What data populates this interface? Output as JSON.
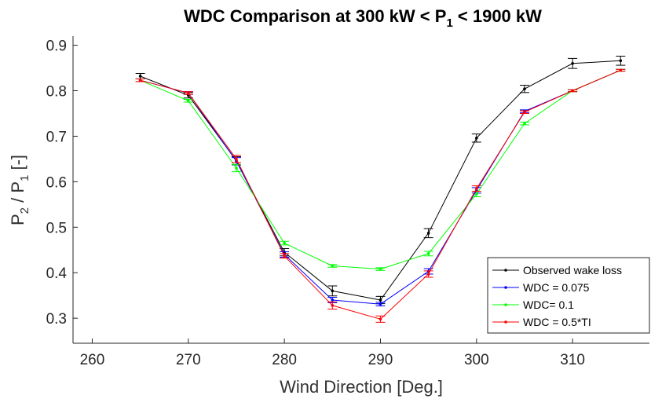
{
  "chart_data": {
    "type": "line",
    "title": {
      "main": "WDC Comparison at 300 kW < P",
      "sub": "1",
      "tail": " < 1900 kW"
    },
    "xlabel": "Wind Direction [Deg.]",
    "ylabel": {
      "a": "P",
      "a_sub": "2",
      "mid": " / P",
      "b_sub": "1",
      "tail": " [-]"
    },
    "xlim": [
      258,
      318
    ],
    "ylim": [
      0.245,
      0.92
    ],
    "xticks": [
      "260",
      "270",
      "280",
      "290",
      "300",
      "310"
    ],
    "yticks": [
      "0.3",
      "0.4",
      "0.5",
      "0.6",
      "0.7",
      "0.8",
      "0.9"
    ],
    "xtick_values": [
      260,
      270,
      280,
      290,
      300,
      310
    ],
    "ytick_values": [
      0.3,
      0.4,
      0.5,
      0.6,
      0.7,
      0.8,
      0.9
    ],
    "legend_position": "bottom-right",
    "x": [
      265,
      270,
      275,
      280,
      285,
      290,
      295,
      300,
      305,
      310,
      315
    ],
    "series": [
      {
        "name": "Observed wake loss",
        "color": "#000000",
        "values": [
          0.832,
          0.79,
          0.646,
          0.445,
          0.36,
          0.34,
          0.487,
          0.696,
          0.804,
          0.86,
          0.866
        ],
        "errors": [
          0.006,
          0.006,
          0.009,
          0.008,
          0.011,
          0.008,
          0.01,
          0.009,
          0.008,
          0.011,
          0.01
        ]
      },
      {
        "name": "WDC = 0.075",
        "color": "#0000ff",
        "values": [
          0.823,
          0.795,
          0.645,
          0.44,
          0.34,
          0.331,
          0.403,
          0.581,
          0.755,
          0.8,
          0.845
        ],
        "errors": [
          0.003,
          0.003,
          0.008,
          0.006,
          0.006,
          0.004,
          0.006,
          0.006,
          0.003,
          0.002,
          0.002
        ]
      },
      {
        "name": "WDC= 0.1",
        "color": "#00ff00",
        "values": [
          0.823,
          0.778,
          0.63,
          0.465,
          0.415,
          0.408,
          0.442,
          0.573,
          0.728,
          0.8,
          0.845
        ],
        "errors": [
          0.003,
          0.003,
          0.008,
          0.004,
          0.003,
          0.003,
          0.005,
          0.006,
          0.003,
          0.002,
          0.002
        ]
      },
      {
        "name": "WDC = 0.5*TI",
        "color": "#ff0000",
        "values": [
          0.823,
          0.795,
          0.65,
          0.437,
          0.328,
          0.298,
          0.397,
          0.585,
          0.753,
          0.8,
          0.845
        ],
        "errors": [
          0.003,
          0.003,
          0.008,
          0.005,
          0.008,
          0.007,
          0.007,
          0.006,
          0.003,
          0.002,
          0.002
        ]
      }
    ]
  }
}
